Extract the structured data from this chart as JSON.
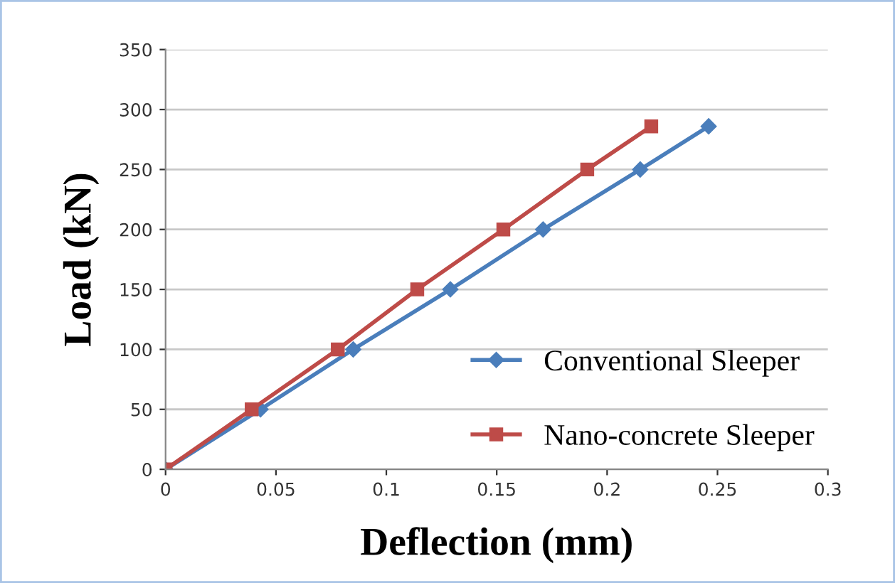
{
  "chart_data": {
    "type": "line",
    "xlabel": "Deflection (mm)",
    "ylabel": "Load (kN)",
    "xlim": [
      0,
      0.3
    ],
    "xticks": [
      0,
      0.05,
      0.1,
      0.15,
      0.2,
      0.25,
      0.3
    ],
    "ylim": [
      0,
      350
    ],
    "yticks": [
      0,
      50,
      100,
      150,
      200,
      250,
      300,
      350
    ],
    "grid": "y",
    "legend": "bottom right",
    "series": [
      {
        "name": "Conventional Sleeper",
        "color": "#4a7ebb",
        "marker": "diamond",
        "x": [
          0,
          0.043,
          0.085,
          0.129,
          0.171,
          0.215,
          0.246
        ],
        "values": [
          0,
          50,
          100,
          150,
          200,
          250,
          286
        ]
      },
      {
        "name": "Nano-concrete Sleeper",
        "color": "#be4b48",
        "marker": "square",
        "x": [
          0,
          0.039,
          0.078,
          0.114,
          0.153,
          0.191,
          0.22
        ],
        "values": [
          0,
          50,
          100,
          150,
          200,
          250,
          286
        ]
      }
    ]
  }
}
